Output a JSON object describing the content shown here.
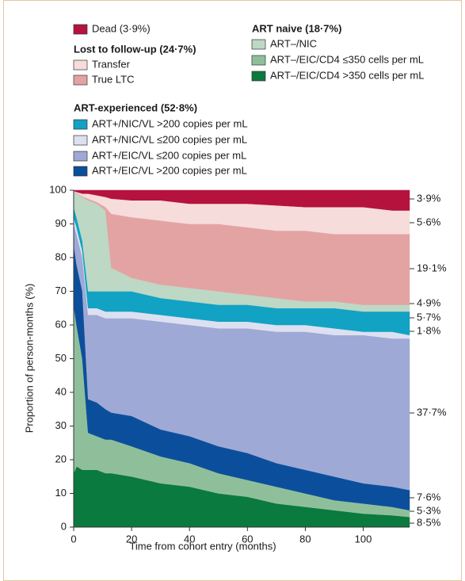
{
  "chart_data": {
    "type": "area",
    "stacked": true,
    "x_label": "Time from cohort entry (months)",
    "y_label": "Proportion of person-months (%)",
    "xlim": [
      0,
      116
    ],
    "ylim": [
      0,
      100
    ],
    "xticks": [
      0,
      20,
      40,
      60,
      80,
      100
    ],
    "yticks": [
      0,
      10,
      20,
      30,
      40,
      50,
      60,
      70,
      80,
      90,
      100
    ],
    "legend_groups": [
      {
        "title": "Lost to follow-up (24·7%)"
      },
      {
        "title": "ART-experienced (52·8%)"
      },
      {
        "title": "ART naive (18·7%)"
      }
    ],
    "x": [
      0,
      1,
      3,
      5,
      8,
      11,
      13,
      20,
      30,
      40,
      50,
      60,
      70,
      80,
      90,
      100,
      110,
      116
    ],
    "series": [
      {
        "name": "ART–/EIC/CD4 >350 cells per mL",
        "color": "#0a7a3e",
        "annotation": "8·5%",
        "values": [
          16,
          18,
          17,
          17,
          17,
          16,
          16,
          15,
          13,
          12,
          10,
          9,
          7,
          6,
          5,
          4,
          3.5,
          3
        ]
      },
      {
        "name": "ART–/EIC/CD4 ≤350 cells per mL",
        "color": "#8fbf9a",
        "annotation": "5·3%",
        "values": [
          50,
          42,
          33,
          11,
          10,
          10,
          10,
          9,
          8,
          7,
          6,
          5,
          5,
          4,
          3,
          3,
          2.5,
          2
        ]
      },
      {
        "name": "ART+/EIC/VL >200 copies per mL",
        "color": "#0b4f9c",
        "annotation": "7·6%",
        "values": [
          18,
          18,
          20,
          10,
          10,
          9,
          8,
          9,
          8,
          8,
          8,
          8,
          7,
          7,
          7,
          6,
          6,
          6
        ]
      },
      {
        "name": "ART+/EIC/VL ≤200 copies per mL",
        "color": "#9fa9d6",
        "annotation": "37·7%",
        "values": [
          6,
          9,
          10,
          25,
          26,
          27,
          28,
          29,
          32,
          33,
          35,
          37,
          39,
          41,
          42,
          44,
          44,
          45
        ]
      },
      {
        "name": "ART+/NIC/VL ≤200 copies per mL",
        "color": "#dde0f0",
        "annotation": "1·8%",
        "values": [
          2,
          2,
          2,
          2,
          2,
          2,
          2,
          2,
          2,
          2,
          2,
          2,
          2,
          2,
          2,
          1,
          2,
          1
        ]
      },
      {
        "name": "ART+/NIC/VL >200 copies per mL",
        "color": "#12a2c4",
        "annotation": "5·7%",
        "values": [
          3,
          3,
          3,
          5,
          5,
          6,
          6,
          6,
          5,
          5,
          5,
          5,
          5,
          5,
          6,
          6,
          6,
          7
        ]
      },
      {
        "name": "ART–/NIC",
        "color": "#bdd8c5",
        "annotation": "4·9%",
        "values": [
          4.5,
          7,
          13,
          27,
          26,
          24,
          7,
          4,
          4,
          4,
          4,
          3,
          3,
          2,
          2,
          2,
          2,
          2
        ]
      },
      {
        "name": "True LTC",
        "color": "#e4a3a3",
        "annotation": "19·1%",
        "values": [
          0.1,
          0.2,
          0.2,
          0.5,
          0.5,
          1,
          16,
          18,
          19,
          19,
          20,
          20,
          20,
          21,
          20,
          21,
          21,
          21
        ]
      },
      {
        "name": "Transfer",
        "color": "#f6dcda",
        "annotation": "5·6%",
        "values": [
          0.2,
          0.3,
          0.8,
          1.5,
          2,
          3,
          4.5,
          5,
          6,
          6,
          6,
          7,
          7.5,
          7,
          8,
          8,
          7,
          7
        ]
      },
      {
        "name": "Dead (3·9%)",
        "color": "#b5123e",
        "annotation": "3·9%",
        "values": [
          0.2,
          0.5,
          1,
          1,
          1.5,
          2,
          2.5,
          3,
          3,
          4,
          4,
          4,
          4.5,
          5,
          5,
          5,
          6,
          6
        ]
      }
    ]
  }
}
